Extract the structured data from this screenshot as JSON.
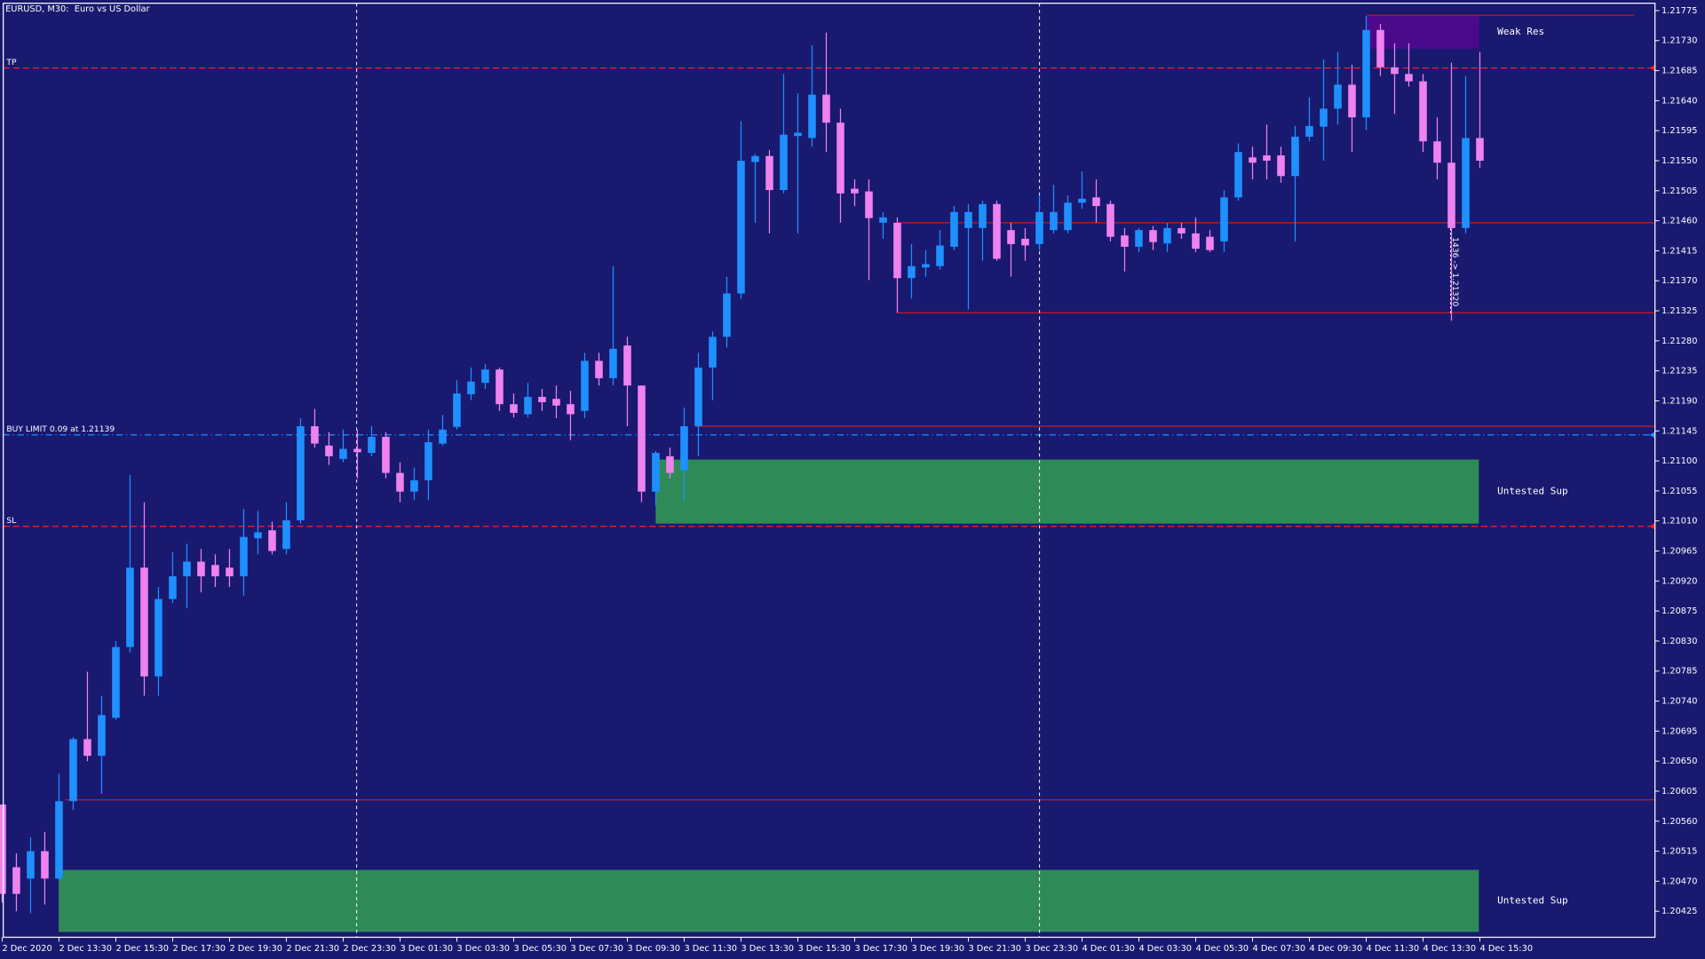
{
  "chart_data": {
    "type": "candlestick",
    "title": "EURUSD, M30:  Euro vs US Dollar",
    "categories": [
      "2 Dec 2020",
      null,
      null,
      null,
      "2 Dec 13:30",
      null,
      null,
      null,
      "2 Dec 15:30",
      null,
      null,
      null,
      "2 Dec 17:30",
      null,
      null,
      null,
      "2 Dec 19:30",
      null,
      null,
      null,
      "2 Dec 21:30",
      null,
      null,
      null,
      "2 Dec 23:30",
      null,
      null,
      null,
      "3 Dec 01:30",
      null,
      null,
      null,
      "3 Dec 03:30",
      null,
      null,
      null,
      "3 Dec 05:30",
      null,
      null,
      null,
      "3 Dec 07:30",
      null,
      null,
      null,
      "3 Dec 09:30",
      null,
      null,
      null,
      "3 Dec 11:30",
      null,
      null,
      null,
      "3 Dec 13:30",
      null,
      null,
      null,
      "3 Dec 15:30",
      null,
      null,
      null,
      "3 Dec 17:30",
      null,
      null,
      null,
      "3 Dec 19:30",
      null,
      null,
      null,
      "3 Dec 21:30",
      null,
      null,
      null,
      "3 Dec 23:30",
      null,
      null,
      null,
      "4 Dec 01:30",
      null,
      null,
      null,
      "4 Dec 03:30",
      null,
      null,
      null,
      "4 Dec 05:30",
      null,
      null,
      null,
      "4 Dec 07:30",
      null,
      null,
      null,
      "4 Dec 09:30",
      null,
      null,
      null,
      "4 Dec 11:30",
      null,
      null,
      null,
      "4 Dec 13:30",
      null,
      null,
      null,
      "4 Dec 15:30"
    ],
    "open": [
      1.20585,
      1.20491,
      1.20474,
      1.20515,
      1.20474,
      1.2059,
      1.20683,
      1.20658,
      1.20715,
      1.20821,
      1.2094,
      1.20777,
      1.20893,
      1.20927,
      1.20949,
      1.20944,
      1.2094,
      1.20927,
      1.20984,
      1.20996,
      1.20968,
      1.21011,
      1.21152,
      1.21123,
      1.21103,
      1.21118,
      1.21112,
      1.21136,
      1.21082,
      1.21054,
      1.21071,
      1.21126,
      1.21151,
      1.212,
      1.21217,
      1.21237,
      1.21185,
      1.2117,
      1.21196,
      1.21193,
      1.21185,
      1.21175,
      1.2125,
      1.21224,
      1.21273,
      1.21213,
      1.21054,
      1.21107,
      1.21086,
      1.21152,
      1.2124,
      1.21286,
      1.21351,
      1.21548,
      1.21557,
      1.21506,
      1.21587,
      1.21584,
      1.21649,
      1.21607,
      1.21508,
      1.21504,
      1.21457,
      1.21457,
      1.21374,
      1.2139,
      1.21392,
      1.21421,
      1.21449,
      1.21449,
      1.21485,
      1.21446,
      1.21433,
      1.21425,
      1.21446,
      1.21446,
      1.21487,
      1.21495,
      1.21485,
      1.21438,
      1.21421,
      1.21446,
      1.21426,
      1.21449,
      1.21441,
      1.21436,
      1.21429,
      1.21495,
      1.21555,
      1.21558,
      1.21558,
      1.21527,
      1.21586,
      1.21601,
      1.21628,
      1.21664,
      1.21615,
      1.21746,
      1.2169,
      1.2168,
      1.21669,
      1.21579,
      1.21547,
      1.21449,
      1.21584
    ],
    "high": [
      1.20585,
      1.20512,
      1.20536,
      1.20544,
      1.20631,
      1.20686,
      1.20784,
      1.20748,
      1.2083,
      1.21079,
      1.21038,
      1.20911,
      1.20963,
      1.20976,
      1.20968,
      1.2096,
      1.20968,
      1.21028,
      1.21025,
      1.21009,
      1.21038,
      1.21164,
      1.21178,
      1.21143,
      1.21147,
      1.21147,
      1.21152,
      1.21143,
      1.21098,
      1.2109,
      1.21147,
      1.21169,
      1.21221,
      1.2124,
      1.21245,
      1.2124,
      1.21201,
      1.21217,
      1.21208,
      1.21213,
      1.21205,
      1.21262,
      1.21262,
      1.21392,
      1.21286,
      1.21213,
      1.21115,
      1.2112,
      1.2118,
      1.21262,
      1.21294,
      1.21376,
      1.21609,
      1.2156,
      1.21566,
      1.2168,
      1.21651,
      1.21723,
      1.21742,
      1.21628,
      1.21522,
      1.21522,
      1.21473,
      1.21465,
      1.21425,
      1.21416,
      1.21446,
      1.21482,
      1.21485,
      1.2149,
      1.2149,
      1.21457,
      1.21449,
      1.21498,
      1.21514,
      1.21498,
      1.21534,
      1.21522,
      1.2149,
      1.21449,
      1.21449,
      1.21452,
      1.21457,
      1.21457,
      1.21465,
      1.21446,
      1.21506,
      1.21576,
      1.21571,
      1.21604,
      1.21571,
      1.21602,
      1.21645,
      1.21702,
      1.21713,
      1.21694,
      1.21767,
      1.21755,
      1.21726,
      1.21726,
      1.2168,
      1.21615,
      1.21697,
      1.21677,
      1.21713
    ],
    "low": [
      1.20438,
      1.20425,
      1.20422,
      1.20435,
      1.20471,
      1.20577,
      1.2065,
      1.20601,
      1.20712,
      1.20813,
      1.20748,
      1.20748,
      1.20887,
      1.20879,
      1.20903,
      1.20911,
      1.20911,
      1.20898,
      1.2096,
      1.2096,
      1.2096,
      1.21006,
      1.2112,
      1.21094,
      1.21098,
      1.21074,
      1.21107,
      1.21074,
      1.21038,
      1.21041,
      1.21041,
      1.21123,
      1.21147,
      1.21191,
      1.21208,
      1.21175,
      1.21165,
      1.21165,
      1.21175,
      1.21164,
      1.21131,
      1.21164,
      1.21213,
      1.21213,
      1.21152,
      1.21038,
      1.21033,
      1.21074,
      1.21038,
      1.21107,
      1.21191,
      1.2127,
      1.21343,
      1.21457,
      1.21441,
      1.21501,
      1.21441,
      1.21571,
      1.21563,
      1.21457,
      1.21482,
      1.21371,
      1.21433,
      1.21322,
      1.21343,
      1.21376,
      1.21387,
      1.21416,
      1.21327,
      1.214,
      1.214,
      1.21376,
      1.214,
      1.21416,
      1.21441,
      1.21441,
      1.21478,
      1.21457,
      1.21429,
      1.21384,
      1.21413,
      1.21416,
      1.21413,
      1.21433,
      1.21413,
      1.21413,
      1.21413,
      1.2149,
      1.21522,
      1.21522,
      1.21517,
      1.21429,
      1.21579,
      1.2155,
      1.21604,
      1.21563,
      1.21596,
      1.21677,
      1.2162,
      1.21661,
      1.21563,
      1.21522,
      1.2131,
      1.21441,
      1.21539
    ],
    "close": [
      1.20451,
      1.20451,
      1.20515,
      1.20474,
      1.2059,
      1.20683,
      1.20658,
      1.20719,
      1.20821,
      1.2094,
      1.20777,
      1.20893,
      1.20927,
      1.20949,
      1.20927,
      1.20927,
      1.20927,
      1.20986,
      1.20993,
      1.20965,
      1.21011,
      1.21152,
      1.21126,
      1.21107,
      1.21118,
      1.21113,
      1.21136,
      1.21082,
      1.21054,
      1.21071,
      1.21128,
      1.21147,
      1.21201,
      1.21219,
      1.21237,
      1.21185,
      1.21172,
      1.21196,
      1.21188,
      1.21183,
      1.2117,
      1.2125,
      1.21224,
      1.21268,
      1.21213,
      1.21054,
      1.21112,
      1.21082,
      1.21152,
      1.2124,
      1.21286,
      1.21351,
      1.2155,
      1.21557,
      1.21506,
      1.21589,
      1.21592,
      1.21649,
      1.21607,
      1.21501,
      1.21501,
      1.21464,
      1.21465,
      1.21374,
      1.21392,
      1.21395,
      1.21423,
      1.21473,
      1.21473,
      1.21485,
      1.21403,
      1.21425,
      1.21423,
      1.21473,
      1.21473,
      1.21487,
      1.21493,
      1.21482,
      1.21436,
      1.21421,
      1.21446,
      1.21428,
      1.21449,
      1.21441,
      1.21418,
      1.21416,
      1.21495,
      1.21563,
      1.21547,
      1.2155,
      1.21527,
      1.21586,
      1.21602,
      1.21628,
      1.21664,
      1.21615,
      1.21746,
      1.2169,
      1.2168,
      1.21669,
      1.21579,
      1.21547,
      1.21449,
      1.21584,
      1.2155
    ],
    "up_color": "#1e90ff",
    "down_color": "#ee82ee",
    "ylim": [
      1.20386,
      1.21786
    ],
    "yticks": [
      1.21775,
      {
        "value": 1.2173,
        "label": "1.21730"
      },
      1.21685,
      {
        "value": 1.2164,
        "label": "1.21640"
      },
      1.21595,
      {
        "value": 1.2155,
        "label": "1.21550"
      },
      1.21505,
      {
        "value": 1.2146,
        "label": "1.21460"
      },
      1.21415,
      {
        "value": 1.2137,
        "label": "1.21370"
      },
      1.21325,
      {
        "value": 1.2128,
        "label": "1.21280"
      },
      1.21235,
      {
        "value": 1.2119,
        "label": "1.21190"
      },
      1.21145,
      {
        "value": 1.211,
        "label": "1.21100"
      },
      1.21055,
      {
        "value": 1.2101,
        "label": "1.21010"
      },
      1.20965,
      {
        "value": 1.2092,
        "label": "1.20920"
      },
      1.20875,
      {
        "value": 1.2083,
        "label": "1.20830"
      },
      1.20785,
      {
        "value": 1.2074,
        "label": "1.20740"
      },
      1.20695,
      {
        "value": 1.2065,
        "label": "1.20650"
      },
      1.20605,
      {
        "value": 1.2056,
        "label": "1.20560"
      },
      1.20515,
      {
        "value": 1.2047,
        "label": "1.20470"
      },
      1.20425
    ],
    "levels": [
      {
        "label": "TP",
        "value": 1.21689,
        "color": "#ff2020",
        "style": "dash"
      },
      {
        "label": "BUY LIMIT 0.09 at 1.21139",
        "value": 1.21139,
        "color": "#1e90ff",
        "style": "dashdot"
      },
      {
        "label": "SL",
        "value": 1.21002,
        "color": "#ff2020",
        "style": "dash"
      }
    ],
    "lines": [
      1.21768,
      1.21457,
      1.21322,
      1.21152,
      1.20592
    ],
    "line_color": "#d01818",
    "zones": [
      {
        "label": "Weak Res",
        "top": 1.21768,
        "bottom": 1.21718,
        "color": "#4b0a8c"
      },
      {
        "label": "Untested Sup",
        "top": 1.21102,
        "bottom": 1.21006,
        "color": "#2e8b57"
      },
      {
        "label": "Untested Sup",
        "top": 1.20487,
        "bottom": 1.20394,
        "color": "#2e8b57"
      }
    ],
    "annotation": "1436 -> 1.21320"
  }
}
